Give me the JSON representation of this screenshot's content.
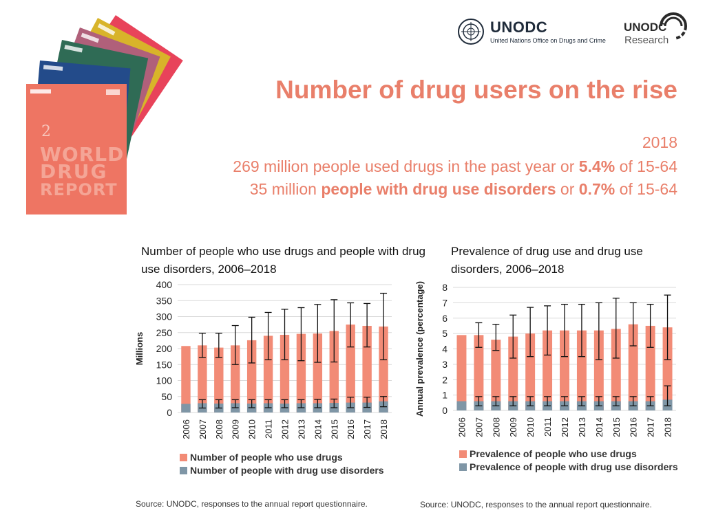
{
  "header": {
    "unodc_logo": {
      "name": "UNODC",
      "subtitle": "United Nations Office on Drugs and Crime"
    },
    "research_logo": {
      "name": "UNODC",
      "subtitle": "Research"
    },
    "report_cover": {
      "title_lines": [
        "WORLD",
        "DRUG",
        "REPORT"
      ],
      "number": "2"
    }
  },
  "headline": "Number of drug users on the rise",
  "subheadline": {
    "year": "2018",
    "line1": {
      "text_a": "269 million people used drugs in the past year or ",
      "bold_a": "5.4%",
      "text_b": " of 15-64"
    },
    "line2": {
      "text_a": "35 million ",
      "bold_a": "people with drug use disorders",
      "text_b": " or ",
      "bold_b": "0.7%",
      "text_c": " of 15-64"
    }
  },
  "colors": {
    "accent": "#e97f6a",
    "users_bar": "#f28b76",
    "disorder_bar": "#7f96a6",
    "grid": "#d9d9d9",
    "error_bar": "#111111"
  },
  "chart_data": [
    {
      "type": "bar",
      "title": "Number of people who use drugs and people with drug use disorders, 2006–2018",
      "ylabel": "Millions",
      "ylim": [
        0,
        400
      ],
      "yticks": [
        0,
        50,
        100,
        150,
        200,
        250,
        300,
        350,
        400
      ],
      "categories": [
        "2006",
        "2007",
        "2008",
        "2009",
        "2010",
        "2011",
        "2012",
        "2013",
        "2014",
        "2015",
        "2016",
        "2017",
        "2018"
      ],
      "series": [
        {
          "name": "Number of people who use drugs",
          "values": [
            208,
            210,
            203,
            210,
            226,
            240,
            243,
            246,
            247,
            255,
            275,
            271,
            269
          ]
        },
        {
          "name": "Number of people with drug use disorders",
          "values": [
            27,
            29,
            28,
            29,
            28,
            29,
            28,
            29,
            29,
            30,
            31,
            31,
            35
          ]
        }
      ],
      "error_bars": {
        "users_low": [
          null,
          172,
          172,
          150,
          155,
          165,
          165,
          162,
          157,
          158,
          205,
          205,
          165
        ],
        "users_high": [
          null,
          248,
          248,
          272,
          298,
          313,
          323,
          328,
          338,
          353,
          343,
          341,
          373
        ],
        "disorders_low": [
          null,
          14,
          14,
          15,
          15,
          15,
          15,
          15,
          15,
          15,
          15,
          16,
          18
        ],
        "disorders_high": [
          null,
          40,
          40,
          40,
          40,
          40,
          40,
          40,
          41,
          42,
          48,
          48,
          50
        ]
      },
      "legend": [
        "Number of people who use drugs",
        "Number of people with drug use disorders"
      ],
      "source": "Source: UNODC, responses to the annual report questionnaire."
    },
    {
      "type": "bar",
      "title": "Prevalence of drug use and drug use disorders, 2006–2018",
      "ylabel": "Annual prevalence (percentage)",
      "ylim": [
        0,
        8
      ],
      "yticks": [
        0,
        1,
        2,
        3,
        4,
        5,
        6,
        7,
        8
      ],
      "categories": [
        "2006",
        "2007",
        "2008",
        "2009",
        "2010",
        "2011",
        "2012",
        "2013",
        "2014",
        "2015",
        "2016",
        "2017",
        "2018"
      ],
      "series": [
        {
          "name": "Prevalence of people who use drugs",
          "values": [
            4.9,
            4.9,
            4.6,
            4.8,
            5.0,
            5.2,
            5.2,
            5.2,
            5.2,
            5.3,
            5.6,
            5.5,
            5.4
          ]
        },
        {
          "name": "Prevalence of people with drug use disorders",
          "values": [
            0.6,
            0.6,
            0.6,
            0.6,
            0.6,
            0.6,
            0.6,
            0.6,
            0.6,
            0.6,
            0.6,
            0.6,
            0.7
          ]
        }
      ],
      "error_bars": {
        "users_low": [
          null,
          4.1,
          3.9,
          3.4,
          3.5,
          3.6,
          3.5,
          3.5,
          3.3,
          3.4,
          4.2,
          4.1,
          3.3
        ],
        "users_high": [
          null,
          5.7,
          5.6,
          6.2,
          6.7,
          6.8,
          6.9,
          6.9,
          7.0,
          7.3,
          7.0,
          6.9,
          7.5
        ],
        "disorders_low": [
          null,
          0.3,
          0.3,
          0.3,
          0.3,
          0.3,
          0.3,
          0.3,
          0.3,
          0.3,
          0.3,
          0.3,
          0.3
        ],
        "disorders_high": [
          null,
          0.9,
          0.9,
          0.9,
          0.9,
          0.9,
          0.9,
          0.9,
          0.9,
          0.9,
          0.9,
          0.9,
          1.6
        ]
      },
      "legend": [
        "Prevalence of people who use drugs",
        "Prevalence of people with drug use disorders"
      ],
      "source": "Source: UNODC, responses to the annual report questionnaire."
    }
  ]
}
